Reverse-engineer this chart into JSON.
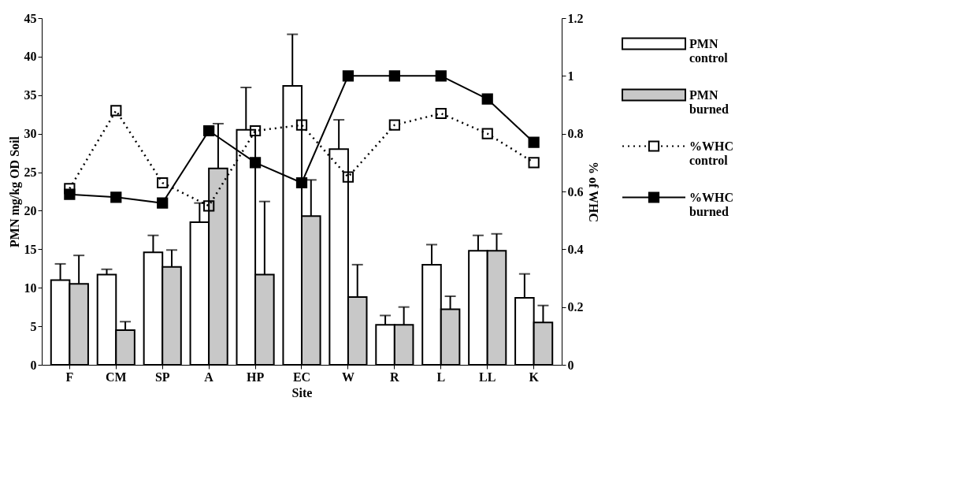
{
  "chart_data": {
    "type": "bar",
    "xlabel": "Site",
    "ylabel": "PMN mg/kg OD Soil",
    "y2label": "% of WHC",
    "categories": [
      "F",
      "CM",
      "SP",
      "A",
      "HP",
      "EC",
      "W",
      "R",
      "L",
      "LL",
      "K"
    ],
    "series": [
      {
        "name": "PMN control",
        "color": "#ffffff",
        "values": [
          11,
          11.7,
          14.6,
          18.5,
          30.5,
          36.2,
          28,
          5.2,
          13,
          14.8,
          8.7
        ],
        "errors": [
          [
            11,
            13.1
          ],
          [
            11.7,
            12.4
          ],
          [
            14.6,
            16.8
          ],
          [
            18.5,
            21
          ],
          [
            30.5,
            36
          ],
          [
            36.2,
            42.9
          ],
          [
            28,
            31.8
          ],
          [
            5.2,
            6.4
          ],
          [
            13,
            15.6
          ],
          [
            14.8,
            16.8
          ],
          [
            8.7,
            11.8
          ]
        ]
      },
      {
        "name": "PMN burned",
        "color": "#c8c8c8",
        "values": [
          10.5,
          4.5,
          12.7,
          25.5,
          11.7,
          19.3,
          8.8,
          5.2,
          7.2,
          14.8,
          5.5
        ],
        "errors": [
          [
            10.5,
            14.2
          ],
          [
            4.5,
            5.6
          ],
          [
            12.7,
            14.9
          ],
          [
            25.5,
            31.3
          ],
          [
            11.7,
            21.2
          ],
          [
            19.3,
            24
          ],
          [
            8.8,
            13
          ],
          [
            5.2,
            7.5
          ],
          [
            7.2,
            8.9
          ],
          [
            14.8,
            17
          ],
          [
            5.5,
            7.7
          ]
        ]
      },
      {
        "name": "%WHC control",
        "type": "line",
        "axis": "y2",
        "color": "#000000",
        "marker": "square",
        "line_style": "dotted",
        "values": [
          0.61,
          0.88,
          0.63,
          0.55,
          0.81,
          0.83,
          0.65,
          0.83,
          0.87,
          0.8,
          0.7
        ]
      },
      {
        "name": "%WHC burned",
        "type": "line",
        "axis": "y2",
        "color": "#000000",
        "marker": "square",
        "line_style": "solid",
        "values": [
          0.59,
          0.58,
          0.56,
          0.81,
          0.7,
          0.63,
          1.0,
          1.0,
          1.0,
          0.92,
          0.77
        ]
      }
    ],
    "ylim": [
      0,
      45
    ],
    "yticks": [
      0,
      5,
      10,
      15,
      20,
      25,
      30,
      35,
      40,
      45
    ],
    "y2lim": [
      0,
      1.2
    ],
    "y2ticks": [
      0,
      0.2,
      0.4,
      0.6,
      0.8,
      1,
      1.2
    ],
    "grid": false,
    "legend": "right"
  }
}
